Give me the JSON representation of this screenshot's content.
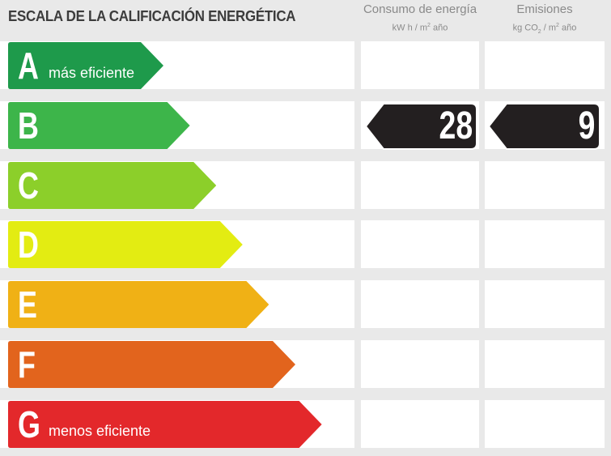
{
  "title": "ESCALA DE LA CALIFICACIÓN ENERGÉTICA",
  "columns": {
    "energy": {
      "label": "Consumo de energía",
      "unit_pre": "kW h / m",
      "unit_sup": "2",
      "unit_post": " año"
    },
    "emissions": {
      "label": "Emisiones",
      "unit_pre": "kg CO",
      "unit_sub": "2",
      "unit_mid": " / m",
      "unit_sup": "2",
      "unit_post": " año"
    }
  },
  "ratings": [
    {
      "letter": "A",
      "note": "más eficiente",
      "color": "#1e9a4b"
    },
    {
      "letter": "B",
      "note": "",
      "color": "#3db54a"
    },
    {
      "letter": "C",
      "note": "",
      "color": "#8ccf2a"
    },
    {
      "letter": "D",
      "note": "",
      "color": "#e3ec12"
    },
    {
      "letter": "E",
      "note": "",
      "color": "#f0b115"
    },
    {
      "letter": "F",
      "note": "",
      "color": "#e2641d"
    },
    {
      "letter": "G",
      "note": "menos eficiente",
      "color": "#e3282b"
    }
  ],
  "result": {
    "rating": "B",
    "energy_value": "28",
    "emissions_value": "9",
    "tag_color": "#231f20"
  }
}
